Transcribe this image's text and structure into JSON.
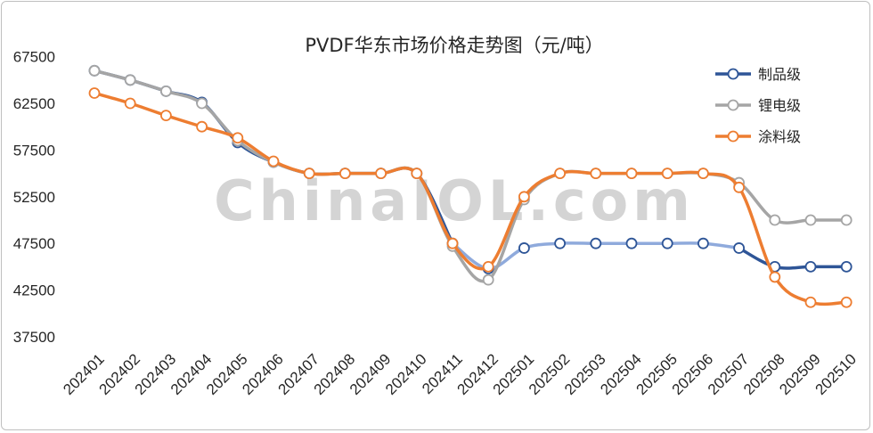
{
  "chart_data": {
    "type": "line",
    "title": "PVDF华东市场价格走势图（元/吨）",
    "xlabel": "",
    "ylabel": "",
    "categories": [
      "202401",
      "202402",
      "202403",
      "202404",
      "202405",
      "202406",
      "202407",
      "202408",
      "202409",
      "202410",
      "202411",
      "202412",
      "202501",
      "202502",
      "202503",
      "202504",
      "202505",
      "202506",
      "202507",
      "202508",
      "202509",
      "202510"
    ],
    "yticks": [
      37500,
      42500,
      47500,
      52500,
      57500,
      62500,
      67500
    ],
    "ylim": [
      37500,
      68000
    ],
    "grid": false,
    "legend_position": "top-right",
    "watermark": "ChinaIOL.com",
    "series": [
      {
        "name": "制品级",
        "color": "#2e5597",
        "color_light": "#8faadc",
        "values": [
          66000,
          65000,
          63800,
          62600,
          58300,
          56200,
          55000,
          55000,
          55000,
          55000,
          47500,
          44800,
          47000,
          47500,
          47500,
          47500,
          47500,
          47500,
          47000,
          45000,
          45000,
          45000
        ]
      },
      {
        "name": "锂电级",
        "color": "#a5a5a5",
        "values": [
          66000,
          65000,
          63800,
          62500,
          58500,
          56200,
          55000,
          55000,
          55000,
          55000,
          47200,
          43600,
          52200,
          55000,
          55000,
          55000,
          55000,
          55000,
          54000,
          50000,
          50000,
          50000
        ]
      },
      {
        "name": "涂料级",
        "color": "#ed7d31",
        "values": [
          63600,
          62500,
          61200,
          60000,
          58800,
          56300,
          55000,
          55000,
          55000,
          55000,
          47500,
          45000,
          52500,
          55000,
          55000,
          55000,
          55000,
          55000,
          53500,
          43900,
          41200,
          41200
        ]
      }
    ]
  }
}
